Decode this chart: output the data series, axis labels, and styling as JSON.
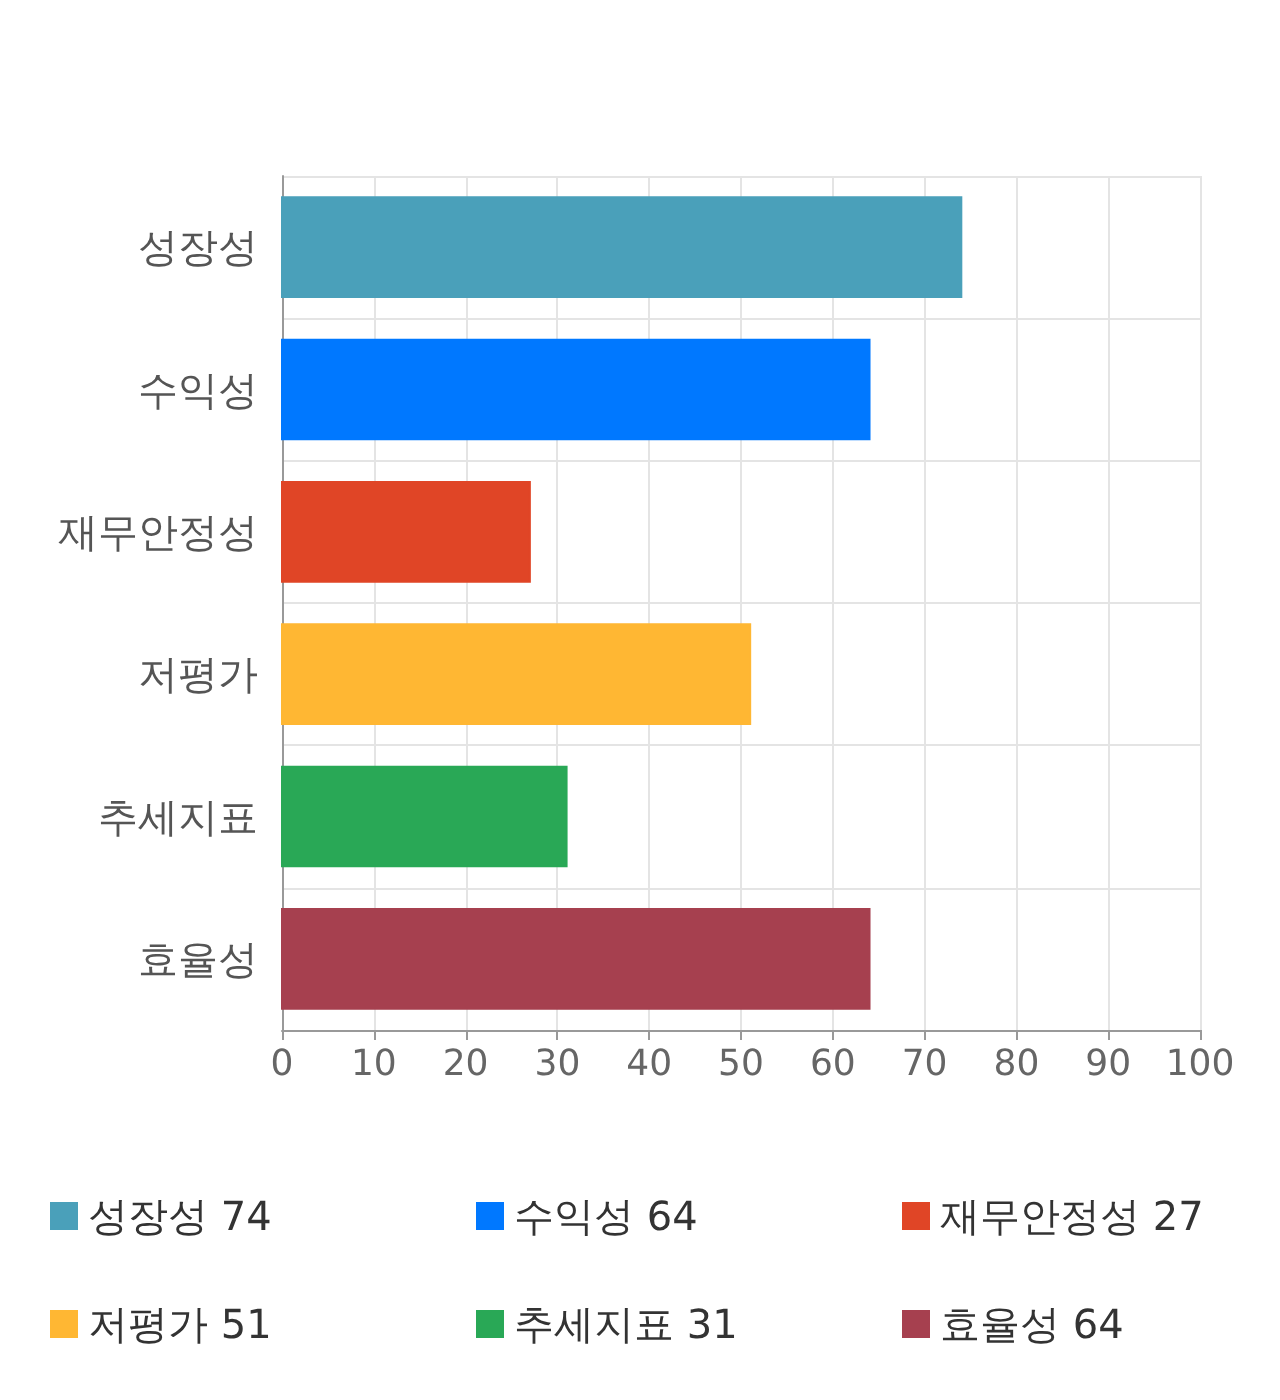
{
  "chart_data": {
    "type": "bar",
    "orientation": "horizontal",
    "stacked": true,
    "categories": [
      "성장성",
      "수익성",
      "재무안정성",
      "저평가",
      "추세지표",
      "효율성"
    ],
    "series": [
      {
        "name": "성장성 74",
        "color": "#4aa0ba",
        "values": [
          74,
          null,
          null,
          null,
          null,
          null
        ]
      },
      {
        "name": "수익성 64",
        "color": "#0078ff",
        "values": [
          null,
          64,
          null,
          null,
          null,
          null
        ]
      },
      {
        "name": "재무안정성 27",
        "color": "#e04526",
        "values": [
          null,
          null,
          27,
          null,
          null,
          null
        ]
      },
      {
        "name": "저평가 51",
        "color": "#ffb733",
        "values": [
          null,
          null,
          null,
          51,
          null,
          null
        ]
      },
      {
        "name": "추세지표 31",
        "color": "#29a856",
        "values": [
          null,
          null,
          null,
          null,
          31,
          null
        ]
      },
      {
        "name": "효율성 64",
        "color": "#a6404f",
        "values": [
          null,
          null,
          null,
          null,
          null,
          64
        ]
      }
    ],
    "xlim": [
      0,
      100
    ],
    "xticks": [
      0,
      10,
      20,
      30,
      40,
      50,
      60,
      70,
      80,
      90,
      100
    ],
    "grid": true,
    "legend": "bottom"
  }
}
